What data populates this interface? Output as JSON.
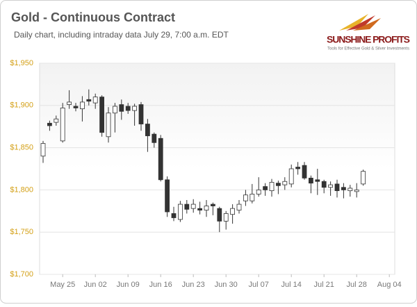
{
  "chart_data": {
    "type": "candlestick",
    "title": "Gold - Continuous Contract",
    "subtitle": "Daily chart, including intraday data July 29, 7:00 a.m. EDT",
    "logo": {
      "name": "SUNSHINE PROFITS",
      "tagline": "Tools for Effective Gold & Silver Investments"
    },
    "categories": [
      null,
      null,
      null,
      "May 25",
      null,
      null,
      null,
      null,
      "Jun 02",
      null,
      null,
      null,
      null,
      "Jun 09",
      null,
      null,
      null,
      null,
      "Jun 16",
      null,
      null,
      null,
      null,
      "Jun 23",
      null,
      null,
      null,
      null,
      "Jun 30",
      null,
      null,
      null,
      null,
      "Jul 07",
      null,
      null,
      null,
      null,
      "Jul 14",
      null,
      null,
      null,
      null,
      "Jul 21",
      null,
      null,
      null,
      null,
      "Jul 28",
      null,
      null,
      null,
      null,
      "Aug 04"
    ],
    "series": [
      {
        "up_color": "#ffffff",
        "down_color": "#333333",
        "open": [
          1840,
          1879,
          1880,
          1858,
          1901,
          1899,
          1896,
          1907,
          1903,
          1910,
          1863,
          1891,
          1901,
          1899,
          1894,
          1901,
          1878,
          1866,
          1861,
          1812,
          1772,
          1765,
          1783,
          1778,
          1778,
          1776,
          1783,
          1778,
          1763,
          1771,
          1776,
          1787,
          1787,
          1795,
          1804,
          1799,
          1808,
          1806,
          1807,
          1827,
          1829,
          1814,
          1812,
          1810,
          1803,
          1807,
          1803,
          1799,
          1798,
          1807,
          null,
          null,
          null,
          null
        ],
        "high": [
          1858,
          1882,
          1888,
          1903,
          1918,
          1903,
          1911,
          1919,
          1914,
          1912,
          1898,
          1903,
          1907,
          1903,
          1902,
          1904,
          1884,
          1868,
          1865,
          1816,
          1780,
          1787,
          1788,
          1789,
          1786,
          1788,
          1785,
          1780,
          1775,
          1783,
          1788,
          1800,
          1807,
          1815,
          1808,
          1813,
          1811,
          1815,
          1830,
          1833,
          1833,
          1817,
          1825,
          1812,
          1810,
          1812,
          1808,
          1806,
          1808,
          1824,
          null,
          null,
          null,
          null
        ],
        "low": [
          1832,
          1870,
          1876,
          1856,
          1896,
          1893,
          1881,
          1900,
          1896,
          1863,
          1856,
          1868,
          1883,
          1890,
          1876,
          1870,
          1845,
          1850,
          1810,
          1768,
          1763,
          1762,
          1772,
          1773,
          1771,
          1768,
          1770,
          1750,
          1753,
          1760,
          1772,
          1781,
          1784,
          1792,
          1793,
          1792,
          1795,
          1800,
          1803,
          1818,
          1812,
          1796,
          1794,
          1796,
          1793,
          1791,
          1790,
          1792,
          1791,
          1805,
          null,
          null,
          null,
          null
        ],
        "close": [
          1855,
          1876,
          1884,
          1897,
          1904,
          1897,
          1904,
          1905,
          1910,
          1868,
          1891,
          1899,
          1893,
          1894,
          1899,
          1878,
          1864,
          1856,
          1812,
          1774,
          1767,
          1783,
          1777,
          1783,
          1776,
          1781,
          1781,
          1763,
          1772,
          1778,
          1783,
          1794,
          1795,
          1800,
          1800,
          1809,
          1805,
          1810,
          1825,
          1825,
          1814,
          1808,
          1810,
          1803,
          1806,
          1799,
          1800,
          1802,
          1800,
          1822,
          null,
          null,
          null,
          null
        ]
      }
    ],
    "ylim": [
      1700,
      1950
    ],
    "yticks": [
      {
        "value": 1700,
        "label": "$1,700"
      },
      {
        "value": 1750,
        "label": "$1,750"
      },
      {
        "value": 1800,
        "label": "$1,800"
      },
      {
        "value": 1850,
        "label": "$1,850"
      },
      {
        "value": 1900,
        "label": "$1,900"
      },
      {
        "value": 1950,
        "label": "$1,950"
      }
    ],
    "grid": true
  }
}
